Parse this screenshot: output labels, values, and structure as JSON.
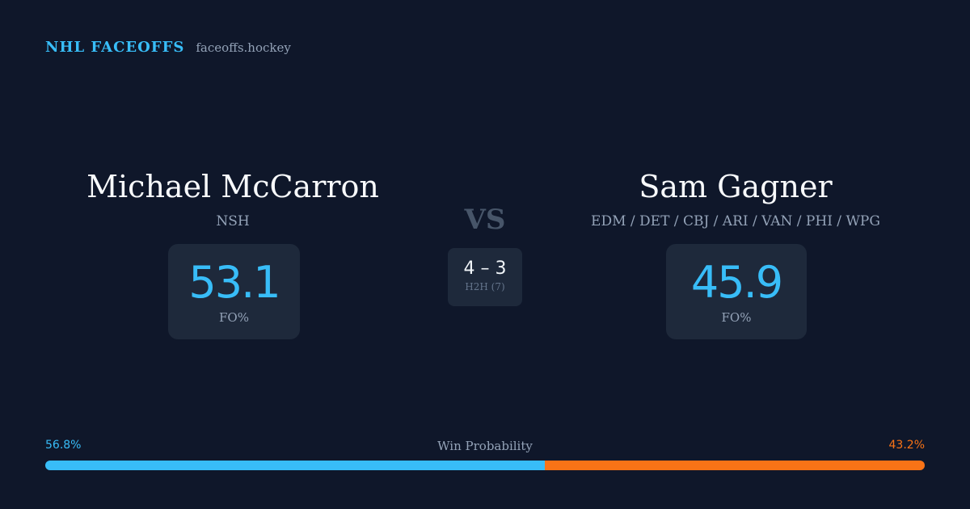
{
  "brand": {
    "name": "NHL FACEOFFS",
    "domain": "faceoffs.hockey"
  },
  "player1": {
    "name": "Michael McCarron",
    "team": "NSH",
    "fo_pct": "53.1",
    "fo_label": "FO%"
  },
  "player2": {
    "name": "Sam Gagner",
    "team": "EDM / DET / CBJ / ARI / VAN / PHI / WPG",
    "fo_pct": "45.9",
    "fo_label": "FO%"
  },
  "versus": {
    "label": "VS",
    "h2h_score": "4 – 3",
    "h2h_label": "H2H (7)"
  },
  "win_probability": {
    "title": "Win Probability",
    "player1_label": "56.8%",
    "player2_label": "43.2%",
    "player1_value": 56.8,
    "player2_value": 43.2,
    "colors": {
      "player1": "#38bdf8",
      "player2": "#f97316"
    }
  }
}
